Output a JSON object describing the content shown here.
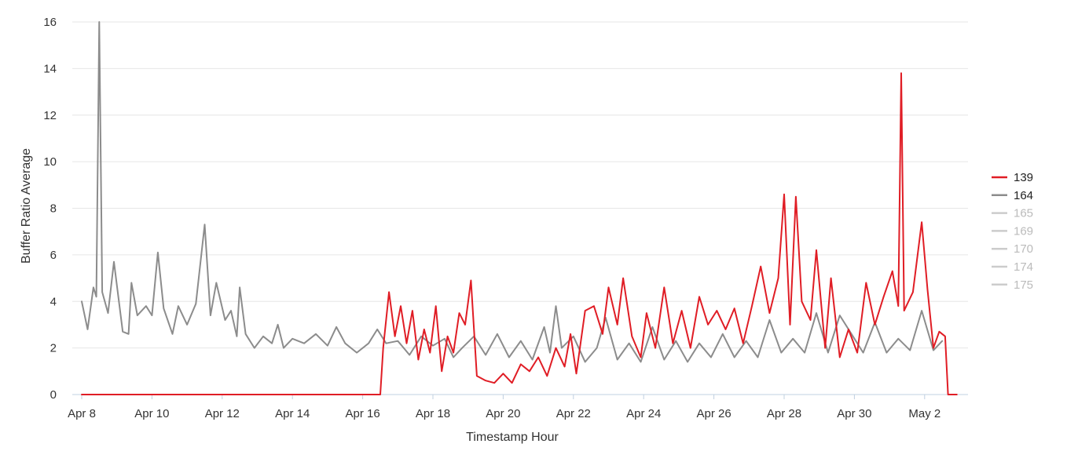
{
  "chart_data": {
    "type": "line",
    "xlabel": "Timestamp Hour",
    "ylabel": "Buffer Ratio Average",
    "ylim": [
      0,
      16
    ],
    "xlim_days": [
      "Apr 8",
      "May 2"
    ],
    "y_ticks": [
      0,
      2,
      4,
      6,
      8,
      10,
      12,
      14,
      16
    ],
    "x_ticks": [
      "Apr 8",
      "Apr 10",
      "Apr 12",
      "Apr 14",
      "Apr 16",
      "Apr 18",
      "Apr 20",
      "Apr 22",
      "Apr 24",
      "Apr 26",
      "Apr 28",
      "Apr 30",
      "May 2"
    ],
    "grid": true,
    "legend_position": "right",
    "series": [
      {
        "name": "139",
        "color": "#e01d25",
        "visible": true,
        "points": [
          [
            "Apr 8 00:00",
            0.0
          ],
          [
            "Apr 16 12:00",
            0.0
          ],
          [
            "Apr 16 14:00",
            2.0
          ],
          [
            "Apr 16 18:00",
            4.4
          ],
          [
            "Apr 16 22:00",
            2.5
          ],
          [
            "Apr 17 02:00",
            3.8
          ],
          [
            "Apr 17 06:00",
            2.2
          ],
          [
            "Apr 17 10:00",
            3.6
          ],
          [
            "Apr 17 14:00",
            1.5
          ],
          [
            "Apr 17 18:00",
            2.8
          ],
          [
            "Apr 17 22:00",
            1.8
          ],
          [
            "Apr 18 02:00",
            3.8
          ],
          [
            "Apr 18 06:00",
            1.0
          ],
          [
            "Apr 18 10:00",
            2.5
          ],
          [
            "Apr 18 14:00",
            1.8
          ],
          [
            "Apr 18 18:00",
            3.5
          ],
          [
            "Apr 18 22:00",
            3.0
          ],
          [
            "Apr 19 02:00",
            4.9
          ],
          [
            "Apr 19 06:00",
            0.8
          ],
          [
            "Apr 19 12:00",
            0.6
          ],
          [
            "Apr 19 18:00",
            0.5
          ],
          [
            "Apr 20 00:00",
            0.9
          ],
          [
            "Apr 20 06:00",
            0.5
          ],
          [
            "Apr 20 12:00",
            1.3
          ],
          [
            "Apr 20 18:00",
            1.0
          ],
          [
            "Apr 21 00:00",
            1.6
          ],
          [
            "Apr 21 06:00",
            0.8
          ],
          [
            "Apr 21 12:00",
            2.0
          ],
          [
            "Apr 21 18:00",
            1.2
          ],
          [
            "Apr 21 22:00",
            2.6
          ],
          [
            "Apr 22 02:00",
            0.9
          ],
          [
            "Apr 22 08:00",
            3.6
          ],
          [
            "Apr 22 14:00",
            3.8
          ],
          [
            "Apr 22 20:00",
            2.6
          ],
          [
            "Apr 23 00:00",
            4.6
          ],
          [
            "Apr 23 06:00",
            3.0
          ],
          [
            "Apr 23 10:00",
            5.0
          ],
          [
            "Apr 23 16:00",
            2.5
          ],
          [
            "Apr 23 22:00",
            1.6
          ],
          [
            "Apr 24 02:00",
            3.5
          ],
          [
            "Apr 24 08:00",
            2.0
          ],
          [
            "Apr 24 14:00",
            4.6
          ],
          [
            "Apr 24 20:00",
            2.2
          ],
          [
            "Apr 25 02:00",
            3.6
          ],
          [
            "Apr 25 08:00",
            2.0
          ],
          [
            "Apr 25 14:00",
            4.2
          ],
          [
            "Apr 25 20:00",
            3.0
          ],
          [
            "Apr 26 02:00",
            3.6
          ],
          [
            "Apr 26 08:00",
            2.8
          ],
          [
            "Apr 26 14:00",
            3.7
          ],
          [
            "Apr 26 20:00",
            2.2
          ],
          [
            "Apr 27 02:00",
            3.8
          ],
          [
            "Apr 27 08:00",
            5.5
          ],
          [
            "Apr 27 14:00",
            3.5
          ],
          [
            "Apr 27 20:00",
            5.0
          ],
          [
            "Apr 28 00:00",
            8.6
          ],
          [
            "Apr 28 04:00",
            3.0
          ],
          [
            "Apr 28 08:00",
            8.5
          ],
          [
            "Apr 28 12:00",
            4.0
          ],
          [
            "Apr 28 18:00",
            3.2
          ],
          [
            "Apr 28 22:00",
            6.2
          ],
          [
            "Apr 29 04:00",
            2.0
          ],
          [
            "Apr 29 08:00",
            5.0
          ],
          [
            "Apr 29 14:00",
            1.6
          ],
          [
            "Apr 29 20:00",
            2.8
          ],
          [
            "Apr 30 02:00",
            1.8
          ],
          [
            "Apr 30 08:00",
            4.8
          ],
          [
            "Apr 30 14:00",
            3.0
          ],
          [
            "Apr 30 20:00",
            4.2
          ],
          [
            "May 1 02:00",
            5.3
          ],
          [
            "May 1 06:00",
            3.8
          ],
          [
            "May 1 08:00",
            13.8
          ],
          [
            "May 1 10:00",
            3.6
          ],
          [
            "May 1 16:00",
            4.4
          ],
          [
            "May 1 22:00",
            7.4
          ],
          [
            "May 2 02:00",
            4.5
          ],
          [
            "May 2 06:00",
            2.0
          ],
          [
            "May 2 10:00",
            2.7
          ],
          [
            "May 2 14:00",
            2.5
          ],
          [
            "May 2 16:00",
            0.0
          ],
          [
            "May 2 22:00",
            0.0
          ]
        ]
      },
      {
        "name": "164",
        "color": "#8c8c8c",
        "visible": true,
        "points": [
          [
            "Apr 8 00:00",
            4.0
          ],
          [
            "Apr 8 04:00",
            2.8
          ],
          [
            "Apr 8 08:00",
            4.6
          ],
          [
            "Apr 8 10:00",
            4.2
          ],
          [
            "Apr 8 12:00",
            16.0
          ],
          [
            "Apr 8 14:00",
            4.4
          ],
          [
            "Apr 8 18:00",
            3.5
          ],
          [
            "Apr 8 22:00",
            5.7
          ],
          [
            "Apr 9 04:00",
            2.7
          ],
          [
            "Apr 9 08:00",
            2.6
          ],
          [
            "Apr 9 10:00",
            4.8
          ],
          [
            "Apr 9 14:00",
            3.4
          ],
          [
            "Apr 9 20:00",
            3.8
          ],
          [
            "Apr 10 00:00",
            3.4
          ],
          [
            "Apr 10 04:00",
            6.1
          ],
          [
            "Apr 10 08:00",
            3.7
          ],
          [
            "Apr 10 14:00",
            2.6
          ],
          [
            "Apr 10 18:00",
            3.8
          ],
          [
            "Apr 11 00:00",
            3.0
          ],
          [
            "Apr 11 06:00",
            3.9
          ],
          [
            "Apr 11 12:00",
            7.3
          ],
          [
            "Apr 11 16:00",
            3.4
          ],
          [
            "Apr 11 20:00",
            4.8
          ],
          [
            "Apr 12 02:00",
            3.2
          ],
          [
            "Apr 12 06:00",
            3.6
          ],
          [
            "Apr 12 10:00",
            2.5
          ],
          [
            "Apr 12 12:00",
            4.6
          ],
          [
            "Apr 12 16:00",
            2.6
          ],
          [
            "Apr 12 22:00",
            2.0
          ],
          [
            "Apr 13 04:00",
            2.5
          ],
          [
            "Apr 13 10:00",
            2.2
          ],
          [
            "Apr 13 14:00",
            3.0
          ],
          [
            "Apr 13 18:00",
            2.0
          ],
          [
            "Apr 14 00:00",
            2.4
          ],
          [
            "Apr 14 08:00",
            2.2
          ],
          [
            "Apr 14 16:00",
            2.6
          ],
          [
            "Apr 15 00:00",
            2.1
          ],
          [
            "Apr 15 06:00",
            2.9
          ],
          [
            "Apr 15 12:00",
            2.2
          ],
          [
            "Apr 15 20:00",
            1.8
          ],
          [
            "Apr 16 04:00",
            2.2
          ],
          [
            "Apr 16 10:00",
            2.8
          ],
          [
            "Apr 16 16:00",
            2.2
          ],
          [
            "Apr 17 00:00",
            2.3
          ],
          [
            "Apr 17 08:00",
            1.7
          ],
          [
            "Apr 17 16:00",
            2.5
          ],
          [
            "Apr 18 00:00",
            2.1
          ],
          [
            "Apr 18 08:00",
            2.4
          ],
          [
            "Apr 18 14:00",
            1.6
          ],
          [
            "Apr 18 20:00",
            2.0
          ],
          [
            "Apr 19 04:00",
            2.5
          ],
          [
            "Apr 19 12:00",
            1.7
          ],
          [
            "Apr 19 20:00",
            2.6
          ],
          [
            "Apr 20 04:00",
            1.6
          ],
          [
            "Apr 20 12:00",
            2.3
          ],
          [
            "Apr 20 20:00",
            1.5
          ],
          [
            "Apr 21 04:00",
            2.9
          ],
          [
            "Apr 21 08:00",
            1.8
          ],
          [
            "Apr 21 12:00",
            3.8
          ],
          [
            "Apr 21 16:00",
            2.0
          ],
          [
            "Apr 22 00:00",
            2.5
          ],
          [
            "Apr 22 08:00",
            1.4
          ],
          [
            "Apr 22 16:00",
            2.0
          ],
          [
            "Apr 22 22:00",
            3.3
          ],
          [
            "Apr 23 06:00",
            1.5
          ],
          [
            "Apr 23 14:00",
            2.2
          ],
          [
            "Apr 23 22:00",
            1.4
          ],
          [
            "Apr 24 06:00",
            2.9
          ],
          [
            "Apr 24 14:00",
            1.5
          ],
          [
            "Apr 24 22:00",
            2.3
          ],
          [
            "Apr 25 06:00",
            1.4
          ],
          [
            "Apr 25 14:00",
            2.2
          ],
          [
            "Apr 25 22:00",
            1.6
          ],
          [
            "Apr 26 06:00",
            2.6
          ],
          [
            "Apr 26 14:00",
            1.6
          ],
          [
            "Apr 26 22:00",
            2.3
          ],
          [
            "Apr 27 06:00",
            1.6
          ],
          [
            "Apr 27 14:00",
            3.2
          ],
          [
            "Apr 27 22:00",
            1.8
          ],
          [
            "Apr 28 06:00",
            2.4
          ],
          [
            "Apr 28 14:00",
            1.8
          ],
          [
            "Apr 28 22:00",
            3.5
          ],
          [
            "Apr 29 06:00",
            1.8
          ],
          [
            "Apr 29 14:00",
            3.4
          ],
          [
            "Apr 29 22:00",
            2.6
          ],
          [
            "Apr 30 06:00",
            1.8
          ],
          [
            "Apr 30 14:00",
            3.1
          ],
          [
            "Apr 30 22:00",
            1.8
          ],
          [
            "May 1 06:00",
            2.4
          ],
          [
            "May 1 14:00",
            1.9
          ],
          [
            "May 1 22:00",
            3.6
          ],
          [
            "May 2 06:00",
            1.9
          ],
          [
            "May 2 12:00",
            2.3
          ]
        ]
      },
      {
        "name": "165",
        "color": "#cccccc",
        "visible": false,
        "points": []
      },
      {
        "name": "169",
        "color": "#cccccc",
        "visible": false,
        "points": []
      },
      {
        "name": "170",
        "color": "#cccccc",
        "visible": false,
        "points": []
      },
      {
        "name": "174",
        "color": "#cccccc",
        "visible": false,
        "points": []
      },
      {
        "name": "175",
        "color": "#cccccc",
        "visible": false,
        "points": []
      }
    ]
  }
}
